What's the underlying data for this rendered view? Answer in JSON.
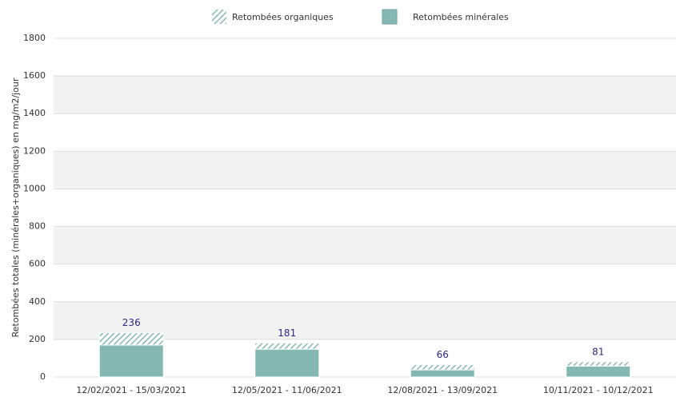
{
  "chart_data": {
    "type": "stacked_bar",
    "y_label": "Retombées totales (minérales+organiques) en mg/m2/jour",
    "categories": [
      "12/02/2021 - 15/03/2021",
      "12/05/2021 - 11/06/2021",
      "12/08/2021 - 13/09/2021",
      "10/11/2021 - 10/12/2021"
    ],
    "series": [
      {
        "name": "Retombées minérales",
        "color": "#84b8b3",
        "pattern": "solid",
        "values": [
          170,
          148,
          38,
          58
        ]
      },
      {
        "name": "Retombées organiques",
        "color": "#84b8b3",
        "pattern": "hatched",
        "values": [
          66,
          33,
          28,
          23
        ]
      }
    ],
    "totals": [
      236,
      181,
      66,
      81
    ],
    "ylim": [
      0,
      1800
    ],
    "yticks": [
      0,
      200,
      400,
      600,
      800,
      1000,
      1200,
      1400,
      1600,
      1800
    ],
    "grid": true,
    "alternate_bands": true,
    "legend": "top"
  }
}
